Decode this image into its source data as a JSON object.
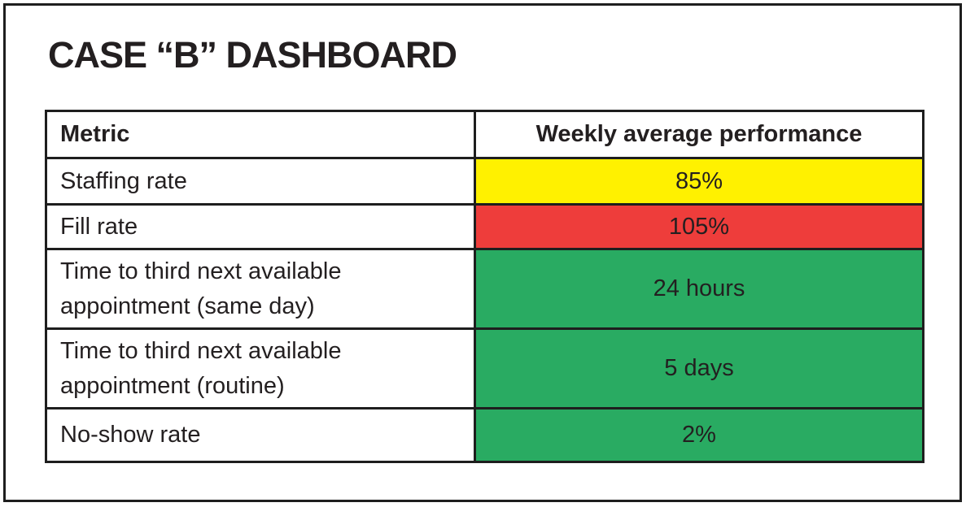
{
  "page_title": "CASE “B” DASHBOARD",
  "colors": {
    "warning_yellow": "#FFF100",
    "alert_red": "#EE3D3B",
    "good_green": "#29AB62",
    "border_black": "#1E1E1E",
    "text_black": "#231F20"
  },
  "chart_data": {
    "type": "table",
    "title": "CASE “B” DASHBOARD",
    "columns": [
      "Metric",
      "Weekly average performance"
    ],
    "rows": [
      {
        "metric": "Staffing rate",
        "value": "85%",
        "status": "yellow",
        "bg": "#FFF100"
      },
      {
        "metric": "Fill rate",
        "value": "105%",
        "status": "red",
        "bg": "#EE3D3B"
      },
      {
        "metric": "Time to third next available appointment (same day)",
        "value": "24 hours",
        "status": "green",
        "bg": "#29AB62"
      },
      {
        "metric": "Time to third next available appointment (routine)",
        "value": "5 days",
        "status": "green",
        "bg": "#29AB62"
      },
      {
        "metric": "No-show rate",
        "value": "2%",
        "status": "green",
        "bg": "#29AB62"
      }
    ]
  }
}
